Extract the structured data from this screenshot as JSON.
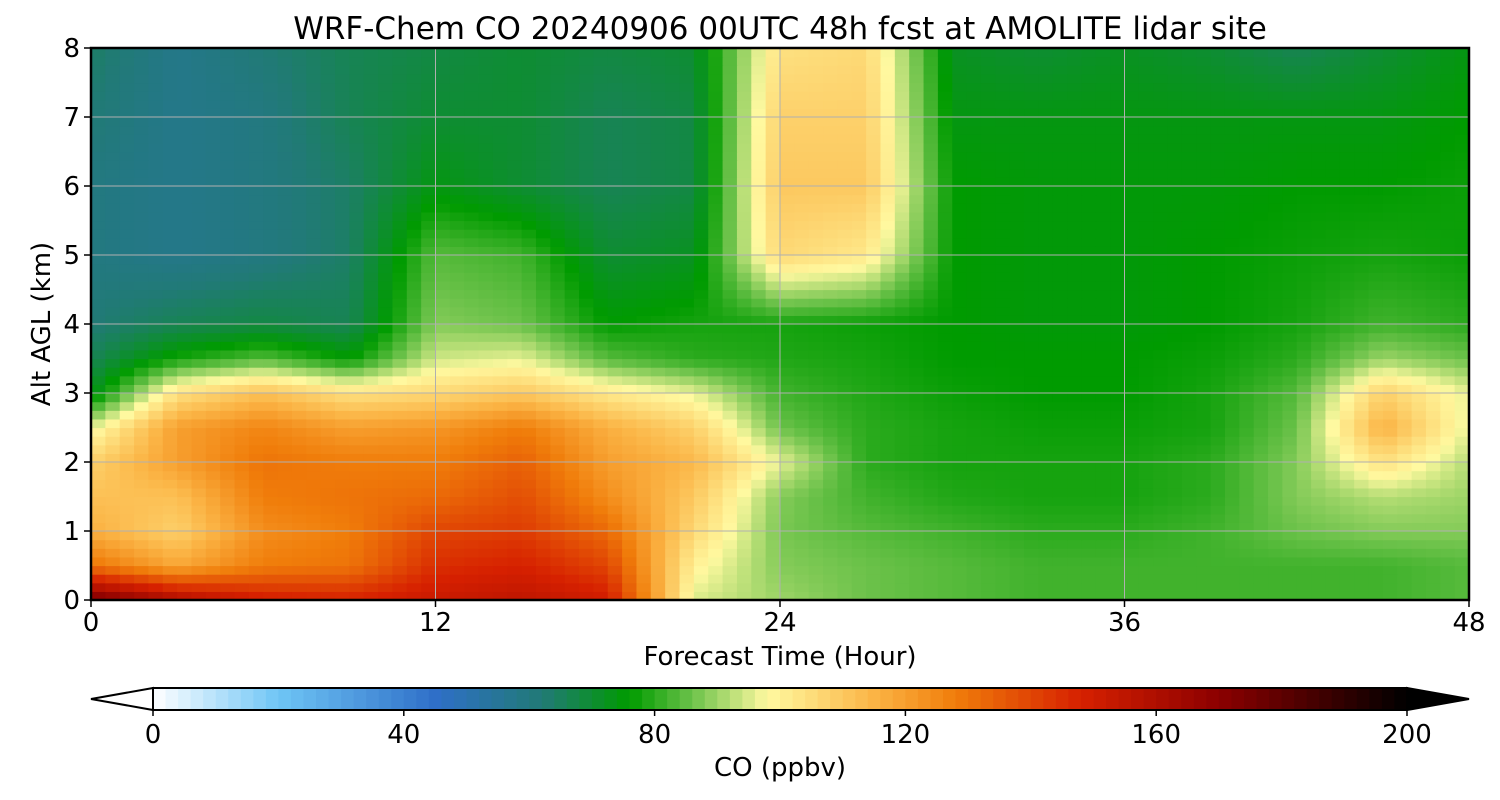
{
  "chart_data": {
    "type": "heatmap",
    "title": "WRF-Chem CO  20240906 00UTC 48h fcst at AMOLITE lidar site",
    "xlabel": "Forecast Time (Hour)",
    "ylabel": "Alt AGL (km)",
    "xlim": [
      0,
      48
    ],
    "ylim": [
      0,
      8
    ],
    "x_ticks": [
      0,
      12,
      24,
      36,
      48
    ],
    "y_ticks": [
      0,
      1,
      2,
      3,
      4,
      5,
      6,
      7,
      8
    ],
    "grid": true,
    "x": [
      0,
      3,
      6,
      9,
      12,
      15,
      18,
      21,
      24,
      27,
      30,
      33,
      36,
      39,
      42,
      45,
      48
    ],
    "y": [
      0,
      0.5,
      1,
      1.5,
      2,
      2.5,
      3,
      3.5,
      4,
      5,
      6,
      7,
      8
    ],
    "values": [
      [
        175,
        160,
        150,
        148,
        152,
        155,
        150,
        95,
        90,
        86,
        84,
        82,
        82,
        82,
        82,
        82,
        84
      ],
      [
        130,
        118,
        128,
        130,
        145,
        148,
        140,
        100,
        88,
        86,
        84,
        82,
        82,
        82,
        82,
        82,
        84
      ],
      [
        116,
        108,
        124,
        128,
        140,
        142,
        132,
        106,
        87,
        84,
        82,
        80,
        80,
        82,
        86,
        88,
        88
      ],
      [
        112,
        112,
        128,
        130,
        132,
        138,
        124,
        110,
        88,
        82,
        79,
        78,
        78,
        80,
        88,
        92,
        90
      ],
      [
        108,
        120,
        130,
        128,
        128,
        134,
        120,
        114,
        96,
        80,
        78,
        78,
        78,
        80,
        88,
        104,
        92
      ],
      [
        96,
        120,
        126,
        120,
        122,
        128,
        116,
        108,
        86,
        80,
        78,
        77,
        77,
        78,
        86,
        116,
        96
      ],
      [
        72,
        104,
        112,
        104,
        106,
        110,
        102,
        96,
        82,
        79,
        77,
        76,
        76,
        78,
        84,
        108,
        96
      ],
      [
        66,
        78,
        84,
        76,
        94,
        96,
        84,
        80,
        79,
        78,
        76,
        76,
        76,
        77,
        80,
        90,
        86
      ],
      [
        62,
        66,
        68,
        66,
        88,
        86,
        76,
        78,
        78,
        77,
        76,
        75,
        75,
        76,
        78,
        82,
        80
      ],
      [
        60,
        58,
        60,
        64,
        84,
        82,
        70,
        72,
        106,
        102,
        76,
        75,
        75,
        76,
        77,
        78,
        77
      ],
      [
        60,
        58,
        60,
        64,
        74,
        70,
        66,
        68,
        110,
        110,
        76,
        75,
        75,
        75,
        76,
        76,
        77
      ],
      [
        62,
        58,
        60,
        66,
        70,
        70,
        66,
        68,
        108,
        108,
        74,
        74,
        74,
        74,
        74,
        74,
        76
      ],
      [
        64,
        58,
        62,
        66,
        68,
        70,
        68,
        70,
        104,
        106,
        72,
        70,
        72,
        70,
        66,
        70,
        74
      ]
    ],
    "colorbar": {
      "label": "CO  (ppbv)",
      "min": 0,
      "max": 200,
      "ticks": [
        0,
        40,
        80,
        120,
        160,
        200
      ],
      "extend": "both",
      "stops": [
        {
          "value": 0,
          "color": "#ffffff"
        },
        {
          "value": 20,
          "color": "#6fc5f5"
        },
        {
          "value": 45,
          "color": "#2f6fc8"
        },
        {
          "value": 62,
          "color": "#217a76"
        },
        {
          "value": 76,
          "color": "#009b00"
        },
        {
          "value": 86,
          "color": "#6cc24a"
        },
        {
          "value": 98,
          "color": "#fff9a0"
        },
        {
          "value": 115,
          "color": "#fbb445"
        },
        {
          "value": 128,
          "color": "#f07d0a"
        },
        {
          "value": 148,
          "color": "#d62000"
        },
        {
          "value": 170,
          "color": "#8c0000"
        },
        {
          "value": 200,
          "color": "#000000"
        }
      ]
    }
  }
}
